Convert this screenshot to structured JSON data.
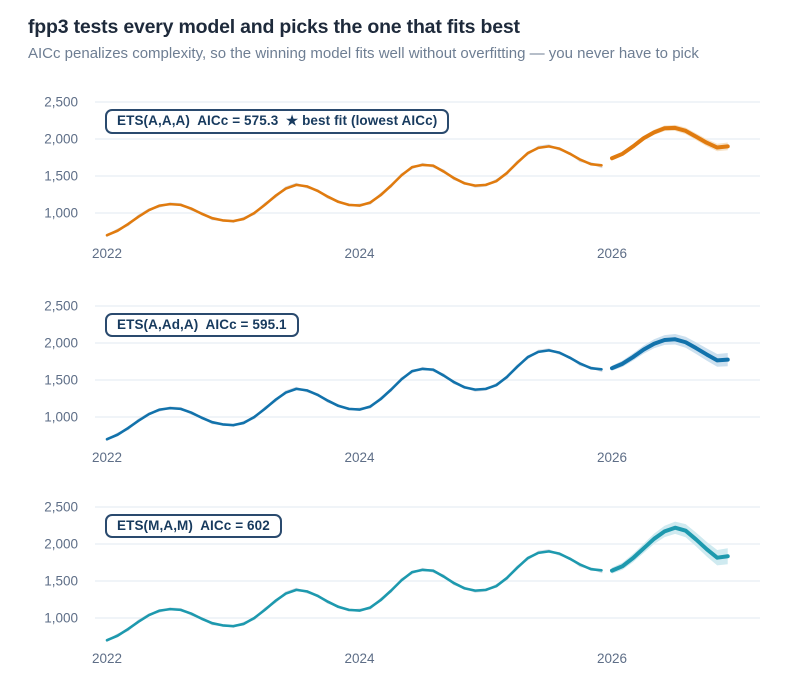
{
  "header": {
    "title": "fpp3 tests every model and picks the one that fits best",
    "subtitle": "AICc penalizes complexity, so the winning model fits well without overfitting — you never have to pick"
  },
  "colors": {
    "title_text": "#1e2a3b",
    "subtitle_text": "#6e7e93",
    "tick_text": "#5e6e87",
    "grid": "#e8edf3",
    "badge_border": "#2a4a6e",
    "badge_text": "#173a5e",
    "observed_line": "#d8dde4",
    "panel1_line": "#e07b0f",
    "panel1_band": "#f7e2c6",
    "panel2_line": "#1272ab",
    "panel2_band": "#cce0ef",
    "panel3_line": "#1d99ae",
    "panel3_band": "#cfeaf0"
  },
  "chart_data": {
    "type": "line",
    "layout": "three stacked small multiples sharing identical axes",
    "x_start_year": 2022,
    "frequency": "monthly",
    "x_ticks": [
      2022,
      2024,
      2026
    ],
    "y_ticks": [
      {
        "value": 2500,
        "label": "2,500"
      },
      {
        "value": 2000,
        "label": "2,000"
      },
      {
        "value": 1500,
        "label": "1,500"
      },
      {
        "value": 1000,
        "label": "1,000"
      }
    ],
    "ylim_displayed": [
      650,
      2550
    ],
    "grid": true,
    "legend": false,
    "actual_series": {
      "name": "observed data (faint gray, repeated in each panel)",
      "color": "#d8dde4",
      "values": [
        690,
        775,
        835,
        965,
        1050,
        1085,
        1130,
        1120,
        1045,
        1000,
        915,
        905,
        880,
        935,
        985,
        1125,
        1215,
        1345,
        1395,
        1345,
        1310,
        1205,
        1160,
        1100,
        1115,
        1125,
        1255,
        1355,
        1525,
        1605,
        1665,
        1625,
        1575,
        1455,
        1410,
        1355,
        1370,
        1445,
        1525,
        1695,
        1795,
        1895,
        1915,
        1855,
        1810,
        1700,
        1675,
        1620
      ]
    },
    "panels": [
      {
        "badge": "ETS(A,A,A)  AICc = 575.3  ★ best fit (lowest AICc)",
        "model": "ETS(A,A,A)",
        "aicc": 575.3,
        "best_fit": true,
        "line_color": "#e07b0f",
        "band_color": "#f7e2c6",
        "fitted": [
          700,
          760,
          850,
          950,
          1040,
          1100,
          1120,
          1110,
          1060,
          990,
          930,
          900,
          890,
          920,
          1000,
          1110,
          1230,
          1330,
          1380,
          1360,
          1300,
          1220,
          1150,
          1110,
          1100,
          1140,
          1240,
          1370,
          1510,
          1620,
          1650,
          1640,
          1560,
          1470,
          1400,
          1370,
          1380,
          1430,
          1540,
          1680,
          1810,
          1880,
          1900,
          1870,
          1800,
          1720,
          1660,
          1645
        ],
        "forecast": [
          1740,
          1800,
          1900,
          2010,
          2090,
          2145,
          2150,
          2110,
          2030,
          1950,
          1885,
          1900
        ],
        "forecast_interval_halfwidth": [
          20,
          24,
          28,
          32,
          35,
          38,
          41,
          44,
          46,
          48,
          50,
          52
        ]
      },
      {
        "badge": "ETS(A,Ad,A)  AICc = 595.1",
        "model": "ETS(A,Ad,A)",
        "aicc": 595.1,
        "best_fit": false,
        "line_color": "#1272ab",
        "band_color": "#cce0ef",
        "fitted": [
          700,
          760,
          850,
          950,
          1040,
          1100,
          1120,
          1110,
          1060,
          990,
          930,
          900,
          890,
          920,
          1000,
          1110,
          1230,
          1330,
          1380,
          1360,
          1300,
          1220,
          1150,
          1110,
          1100,
          1140,
          1240,
          1370,
          1510,
          1620,
          1650,
          1640,
          1560,
          1470,
          1400,
          1370,
          1380,
          1430,
          1540,
          1680,
          1810,
          1880,
          1900,
          1870,
          1800,
          1720,
          1660,
          1645
        ],
        "forecast": [
          1660,
          1720,
          1810,
          1910,
          1990,
          2040,
          2050,
          2010,
          1930,
          1845,
          1765,
          1775
        ],
        "forecast_interval_halfwidth": [
          35,
          42,
          49,
          55,
          61,
          66,
          71,
          75,
          79,
          83,
          86,
          90
        ]
      },
      {
        "badge": "ETS(M,A,M)  AICc = 602",
        "model": "ETS(M,A,M)",
        "aicc": 602,
        "best_fit": false,
        "line_color": "#1d99ae",
        "band_color": "#cfeaf0",
        "fitted": [
          700,
          760,
          850,
          950,
          1040,
          1100,
          1120,
          1110,
          1060,
          990,
          930,
          900,
          890,
          920,
          1000,
          1110,
          1230,
          1330,
          1380,
          1360,
          1300,
          1220,
          1150,
          1110,
          1100,
          1140,
          1240,
          1370,
          1510,
          1620,
          1650,
          1640,
          1560,
          1470,
          1400,
          1370,
          1380,
          1430,
          1540,
          1680,
          1810,
          1880,
          1900,
          1870,
          1800,
          1720,
          1660,
          1645
        ],
        "forecast": [
          1640,
          1700,
          1810,
          1940,
          2070,
          2170,
          2220,
          2180,
          2060,
          1930,
          1815,
          1835
        ],
        "forecast_interval_halfwidth": [
          40,
          48,
          56,
          63,
          70,
          77,
          83,
          89,
          94,
          99,
          104,
          108
        ]
      }
    ]
  }
}
